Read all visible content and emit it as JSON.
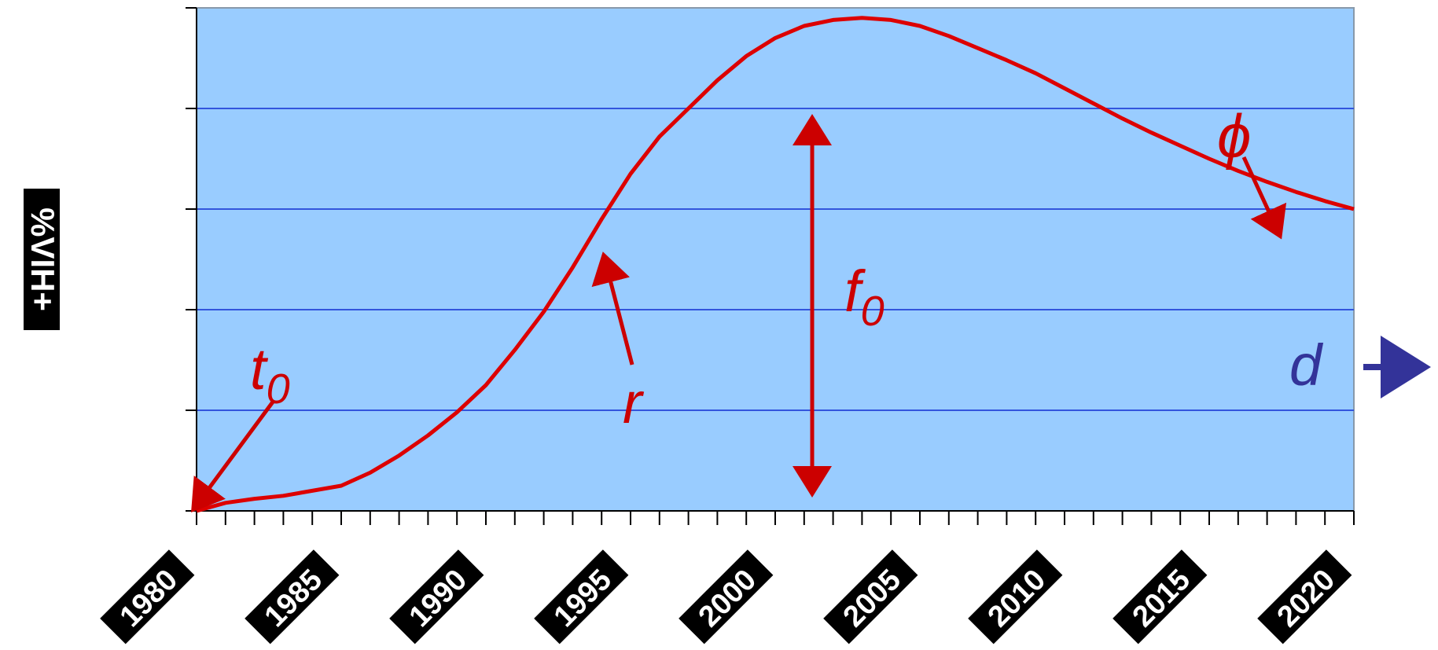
{
  "chart_data": {
    "type": "line",
    "ylabel": "%VIH+",
    "xlabel": "",
    "title": "",
    "x_tick_labels": [
      "1980",
      "1985",
      "1990",
      "1995",
      "2000",
      "2005",
      "2010",
      "2015",
      "2020"
    ],
    "xlim": [
      1980,
      2020
    ],
    "ylim": [
      0,
      5
    ],
    "y_ticks": [
      0,
      1,
      2,
      3,
      4,
      5
    ],
    "grid": "horizontal",
    "series": [
      {
        "x": [
          1980,
          1981,
          1982,
          1983,
          1984,
          1985,
          1986,
          1987,
          1988,
          1989,
          1990,
          1991,
          1992,
          1993,
          1994,
          1995,
          1996,
          1997,
          1998,
          1999,
          2000,
          2001,
          2002,
          2003,
          2004,
          2005,
          2006,
          2007,
          2008,
          2009,
          2010,
          2011,
          2012,
          2013,
          2014,
          2015,
          2016,
          2017,
          2018,
          2019,
          2020
        ],
        "y": [
          0.0,
          0.08,
          0.12,
          0.15,
          0.2,
          0.25,
          0.38,
          0.55,
          0.75,
          0.98,
          1.25,
          1.6,
          1.98,
          2.42,
          2.9,
          3.35,
          3.72,
          4.0,
          4.28,
          4.52,
          4.7,
          4.82,
          4.88,
          4.9,
          4.88,
          4.82,
          4.72,
          4.6,
          4.48,
          4.35,
          4.2,
          4.05,
          3.9,
          3.76,
          3.63,
          3.5,
          3.38,
          3.27,
          3.17,
          3.08,
          3.0
        ]
      }
    ],
    "annotations": {
      "t0": "t",
      "t0_sub": "0",
      "r": "r",
      "f0": "f",
      "f0_sub": "0",
      "phi": "ϕ",
      "d": "d"
    },
    "colors": {
      "plot_background": "#99ccff",
      "grid": "#3355dd",
      "curve": "#dd0000",
      "annotation": "#cc0000",
      "d_arrow": "#333399"
    }
  }
}
